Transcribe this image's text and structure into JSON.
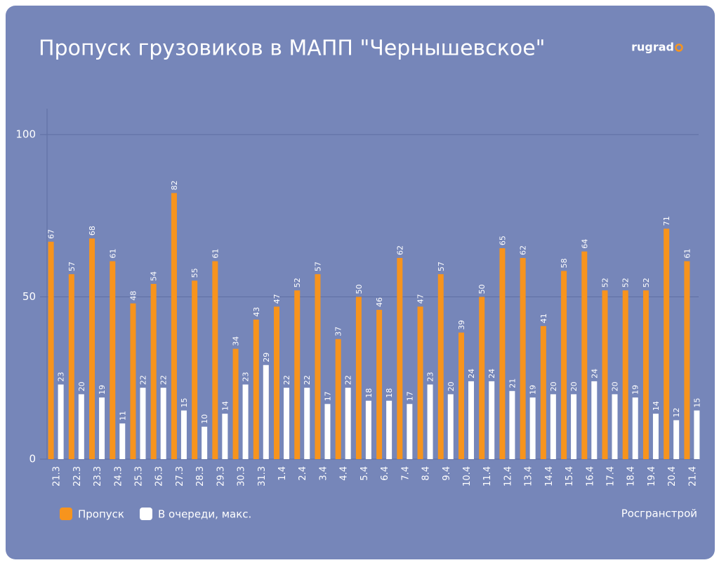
{
  "chart_data": {
    "type": "bar",
    "title": "Пропуск грузовиков в МАПП \"Чернышевское\"",
    "logo": "rugrad",
    "source": "Росгранстрой",
    "categories": [
      "21.3",
      "22.3",
      "23.3",
      "24.3",
      "25.3",
      "26.3",
      "27.3",
      "28.3",
      "29.3",
      "30.3",
      "31.3",
      "1.4",
      "2.4",
      "3.4",
      "4.4",
      "5.4",
      "6.4",
      "7.4",
      "8.4",
      "9.4",
      "10.4",
      "11.4",
      "12.4",
      "13.4",
      "14.4",
      "15.4",
      "16.4",
      "17.4",
      "18.4",
      "19.4",
      "20.4",
      "21.4"
    ],
    "series": [
      {
        "name": "Пропуск",
        "color": "#f7941d",
        "values": [
          67,
          57,
          68,
          61,
          48,
          54,
          82,
          55,
          61,
          34,
          43,
          47,
          52,
          57,
          37,
          50,
          46,
          62,
          47,
          57,
          39,
          50,
          65,
          62,
          41,
          58,
          64,
          52,
          52,
          52,
          71,
          61
        ]
      },
      {
        "name": "В очереди, макс.",
        "color": "#ffffff",
        "values": [
          23,
          20,
          19,
          11,
          22,
          22,
          15,
          10,
          14,
          23,
          29,
          22,
          22,
          17,
          22,
          18,
          18,
          17,
          23,
          20,
          24,
          24,
          21,
          19,
          20,
          20,
          24,
          20,
          19,
          14,
          12,
          15
        ]
      }
    ],
    "ylim": [
      0,
      108
    ],
    "yticks": [
      0,
      50,
      100
    ],
    "grid": true,
    "legend": "bottom-left"
  }
}
